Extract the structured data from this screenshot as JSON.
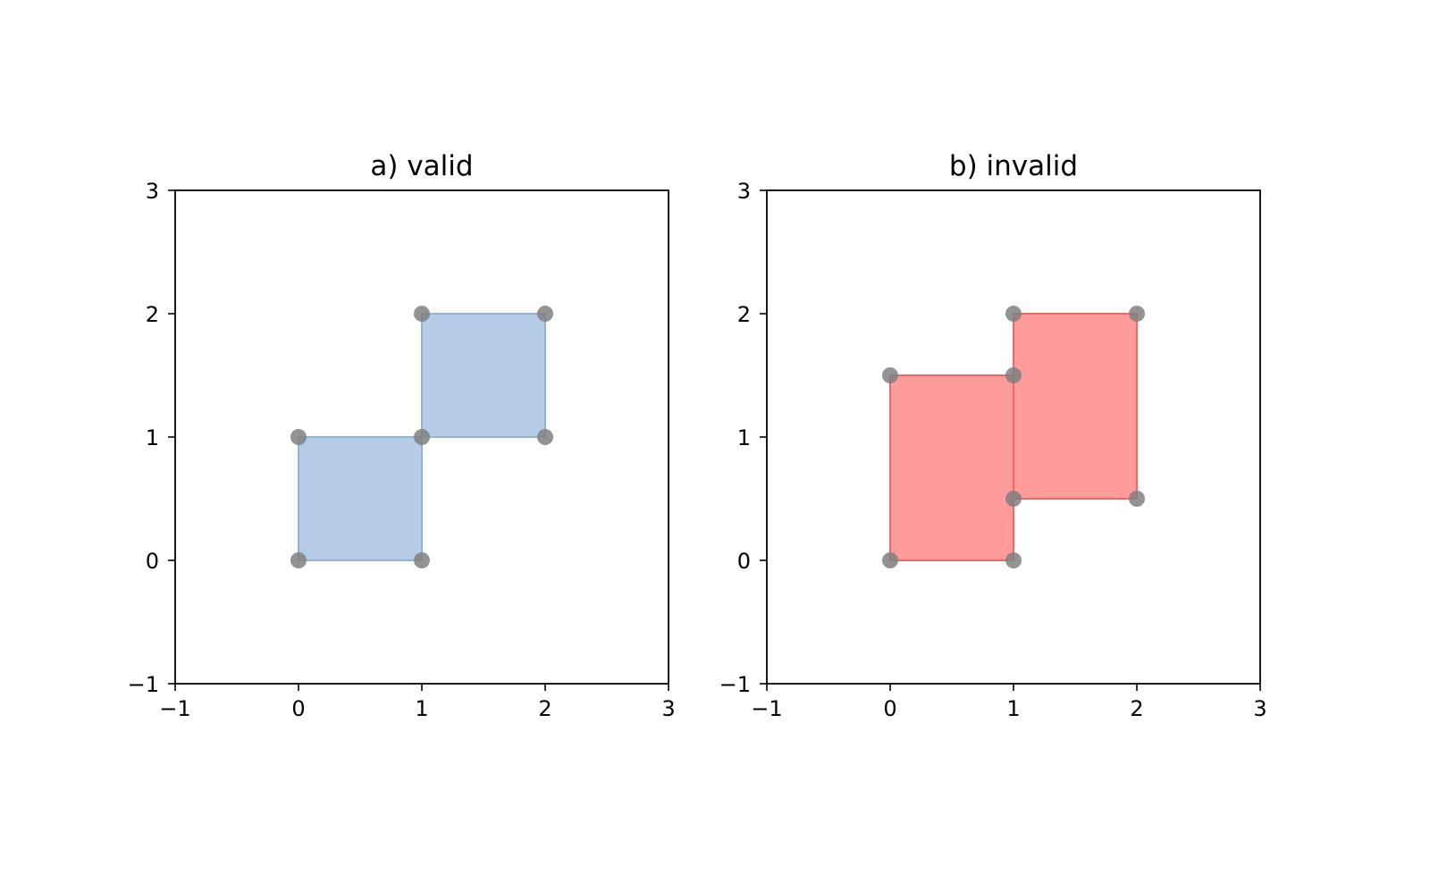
{
  "chart_data": [
    {
      "type": "scatter",
      "title": "a) valid",
      "xlim": [
        -1,
        3
      ],
      "ylim": [
        -1,
        3
      ],
      "xticks": [
        -1,
        0,
        1,
        2,
        3
      ],
      "yticks": [
        -1,
        0,
        1,
        2,
        3
      ],
      "xtick_labels": [
        "−1",
        "0",
        "1",
        "2",
        "3"
      ],
      "ytick_labels": [
        "−1",
        "0",
        "1",
        "2",
        "3"
      ],
      "grid": false,
      "fill_color": "#a7c3e0",
      "edge_color": "#8fb2d6",
      "point_color": "#808080",
      "rectangles": [
        {
          "x0": 0,
          "y0": 0,
          "x1": 1,
          "y1": 1
        },
        {
          "x0": 1,
          "y0": 1,
          "x1": 2,
          "y1": 2
        }
      ],
      "points": [
        [
          0,
          0
        ],
        [
          1,
          0
        ],
        [
          1,
          1
        ],
        [
          0,
          1
        ],
        [
          2,
          1
        ],
        [
          2,
          2
        ],
        [
          1,
          2
        ]
      ]
    },
    {
      "type": "scatter",
      "title": "b) invalid",
      "xlim": [
        -1,
        3
      ],
      "ylim": [
        -1,
        3
      ],
      "xticks": [
        -1,
        0,
        1,
        2,
        3
      ],
      "yticks": [
        -1,
        0,
        1,
        2,
        3
      ],
      "xtick_labels": [
        "−1",
        "0",
        "1",
        "2",
        "3"
      ],
      "ytick_labels": [
        "−1",
        "0",
        "1",
        "2",
        "3"
      ],
      "grid": false,
      "fill_color": "#ff8a8a",
      "edge_color": "#f06565",
      "point_color": "#808080",
      "rectangles": [
        {
          "x0": 0,
          "y0": 0,
          "x1": 1,
          "y1": 1.5
        },
        {
          "x0": 1,
          "y0": 0.5,
          "x1": 2,
          "y1": 2
        }
      ],
      "points": [
        [
          0,
          0
        ],
        [
          1,
          0
        ],
        [
          1,
          1.5
        ],
        [
          0,
          1.5
        ],
        [
          1,
          0.5
        ],
        [
          2,
          0.5
        ],
        [
          2,
          2
        ],
        [
          1,
          2
        ]
      ]
    }
  ]
}
